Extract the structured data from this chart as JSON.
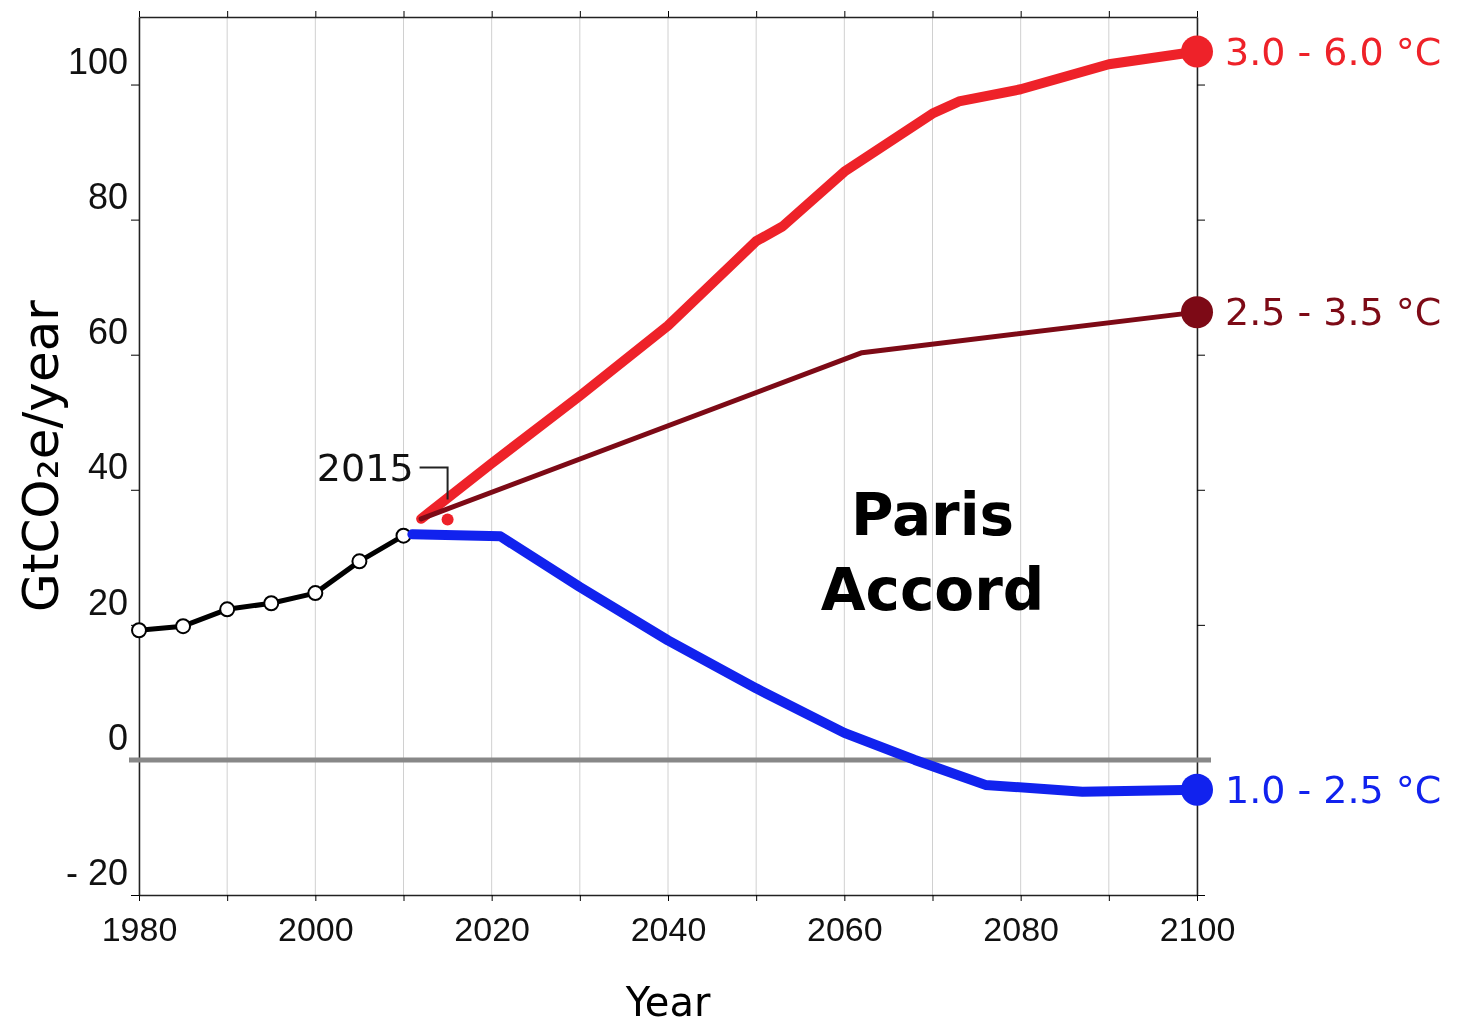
{
  "chart_data": {
    "type": "line",
    "xlabel": "Year",
    "ylabel": "GtCO₂e/year",
    "xlim": [
      1980,
      2100
    ],
    "ylim": [
      -20,
      110
    ],
    "xticks": [
      1980,
      {
        "value": 1990,
        "label": null
      },
      2000,
      {
        "value": 2010,
        "label": null
      },
      2020,
      {
        "value": 2030,
        "label": null
      },
      2040,
      {
        "value": 2050,
        "label": null
      },
      2060,
      {
        "value": 2070,
        "label": null
      },
      2080,
      {
        "value": 2090,
        "label": null
      },
      2100
    ],
    "yticks": [
      {
        "value": -20,
        "label": "- 20"
      },
      0,
      20,
      40,
      60,
      80,
      100
    ],
    "grid": "x",
    "line_style": "solid",
    "ref_lines": [
      {
        "axis": "y",
        "value": 0,
        "label": null,
        "color": "#888888"
      }
    ],
    "annotations": [
      {
        "text": "2015",
        "x": 2015,
        "y": 35.6
      },
      "Paris Accord"
    ],
    "series": [
      {
        "color": "#000000",
        "marker": "circle",
        "x": [
          1980,
          1985,
          1990,
          1995,
          2000,
          2005,
          2010
        ],
        "values": [
          19.2,
          19.8,
          22.3,
          23.2,
          24.7,
          29.4,
          33.2
        ]
      },
      {
        "name": "3.0 - 6.0 °C",
        "color": "#ee2229",
        "x": [
          2012,
          2020,
          2030,
          2040,
          2050,
          2053,
          2060,
          2070,
          2073,
          2080,
          2090,
          2100
        ],
        "values": [
          35.7,
          43.9,
          53.9,
          64.3,
          76.8,
          79,
          87.1,
          95.7,
          97.5,
          99.3,
          103,
          104.9
        ]
      },
      {
        "name": "2.5 - 3.5 °C",
        "color": "#7d0a16",
        "x": [
          2012,
          2062,
          2100
        ],
        "values": [
          35.7,
          60.3,
          66.3
        ]
      },
      {
        "name": "1.0 - 2.5 °C",
        "color": "#1122ee",
        "x": [
          2011,
          2021,
          2030,
          2040,
          2050,
          2060,
          2068,
          2076,
          2087,
          2100
        ],
        "values": [
          33.4,
          33.1,
          25.6,
          17.7,
          10.6,
          4.0,
          0,
          -3.7,
          -4.7,
          -4.4
        ]
      }
    ]
  }
}
